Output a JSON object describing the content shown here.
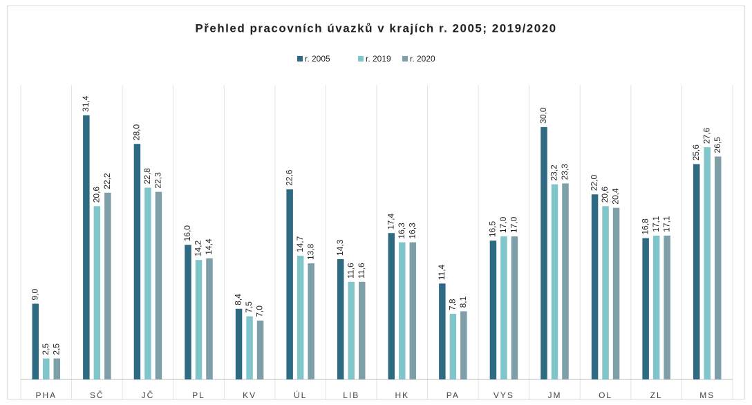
{
  "chart_data": {
    "type": "bar",
    "title": "Přehled pracovních úvazků v krajích r. 2005; 2019/2020",
    "categories": [
      "PHA",
      "SČ",
      "JČ",
      "PL",
      "KV",
      "ÚL",
      "LIB",
      "HK",
      "PA",
      "VYS",
      "JM",
      "OL",
      "ZL",
      "MS"
    ],
    "series": [
      {
        "name": "r. 2005",
        "color": "#2e6b82",
        "values": [
          9.0,
          31.4,
          28.0,
          16.0,
          8.4,
          22.6,
          14.3,
          17.4,
          11.4,
          16.5,
          30.0,
          22.0,
          16.8,
          25.6
        ],
        "value_labels": [
          "9,0",
          "31,4",
          "28,0",
          "16,0",
          "8,4",
          "22,6",
          "14,3",
          "17,4",
          "11,4",
          "16,5",
          "30,0",
          "22,0",
          "16,8",
          "25,6"
        ]
      },
      {
        "name": "r. 2019",
        "color": "#80c5ca",
        "values": [
          2.5,
          20.6,
          22.8,
          14.2,
          7.5,
          14.7,
          11.6,
          16.3,
          7.8,
          17.0,
          23.2,
          20.6,
          17.1,
          27.6
        ],
        "value_labels": [
          "2,5",
          "20,6",
          "22,8",
          "14,2",
          "7,5",
          "14,7",
          "11,6",
          "16,3",
          "7,8",
          "17,0",
          "23,2",
          "20,6",
          "17,1",
          "27,6"
        ]
      },
      {
        "name": "r. 2020",
        "color": "#7e9ea8",
        "values": [
          2.5,
          22.2,
          22.3,
          14.4,
          7.0,
          13.8,
          11.6,
          16.3,
          8.1,
          17.0,
          23.3,
          20.4,
          17.1,
          26.5
        ],
        "value_labels": [
          "2,5",
          "22,2",
          "22,3",
          "14,4",
          "7,0",
          "13,8",
          "11,6",
          "16,3",
          "8,1",
          "17,0",
          "23,3",
          "20,4",
          "17,1",
          "26,5"
        ]
      }
    ],
    "ylim": [
      0,
      35
    ],
    "legend": "top"
  }
}
